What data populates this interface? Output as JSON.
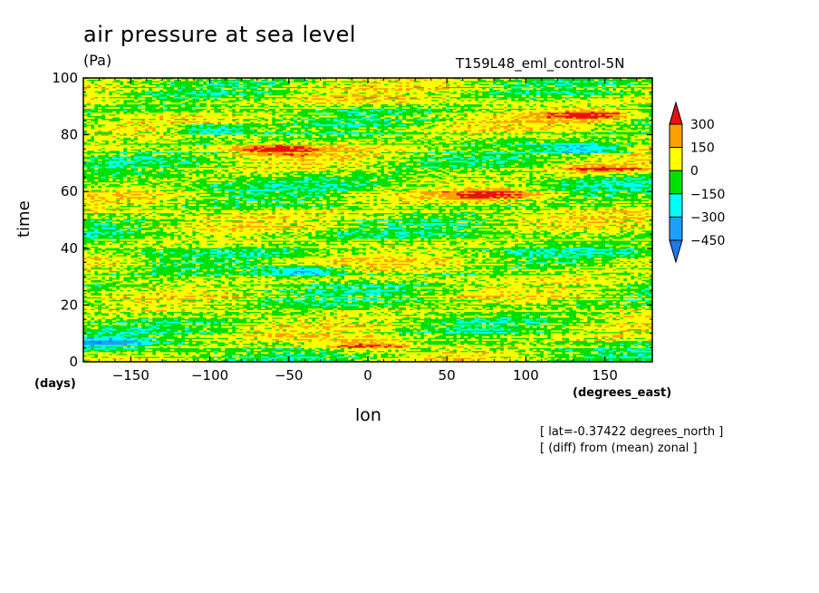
{
  "header": {
    "title": "air pressure at sea level",
    "units": "(Pa)",
    "run": "T159L48_eml_control-5N"
  },
  "notes": {
    "line1": "[ lat=-0.37422 degrees_north ]",
    "line2": "[ (diff) from (mean) zonal ]"
  },
  "chart_data": {
    "type": "heatmap",
    "title": "air pressure at sea level",
    "xlabel": "lon",
    "xunit": "(degrees_east)",
    "ylabel": "time",
    "yunit": "(days)",
    "xlim": [
      -180,
      180
    ],
    "ylim": [
      0,
      100
    ],
    "xticks": [
      -150,
      -100,
      -50,
      0,
      50,
      100,
      150
    ],
    "yticks": [
      0,
      20,
      40,
      60,
      80,
      100
    ],
    "colorbar": {
      "levels": [
        -450,
        -300,
        -150,
        0,
        150,
        300
      ],
      "colors": [
        "#1e78f0",
        "#1ea0ff",
        "#00ffff",
        "#00e000",
        "#ffff00",
        "#ffa000",
        "#e81010"
      ]
    },
    "features": [
      {
        "kind": "high",
        "lon": 0,
        "time": 6,
        "value": 300
      },
      {
        "kind": "high",
        "lon": 80,
        "time": 59,
        "value": 300
      },
      {
        "kind": "high",
        "lon": 150,
        "time": 68,
        "value": 300
      },
      {
        "kind": "high",
        "lon": -60,
        "time": 75,
        "value": 300
      },
      {
        "kind": "high",
        "lon": 140,
        "time": 87,
        "value": 300
      },
      {
        "kind": "low",
        "lon": -100,
        "time": 82,
        "value": -300
      },
      {
        "kind": "low",
        "lon": 140,
        "time": 75,
        "value": -300
      },
      {
        "kind": "low",
        "lon": -40,
        "time": 32,
        "value": -300
      },
      {
        "kind": "low",
        "lon": -170,
        "time": 7,
        "value": -300
      }
    ]
  }
}
